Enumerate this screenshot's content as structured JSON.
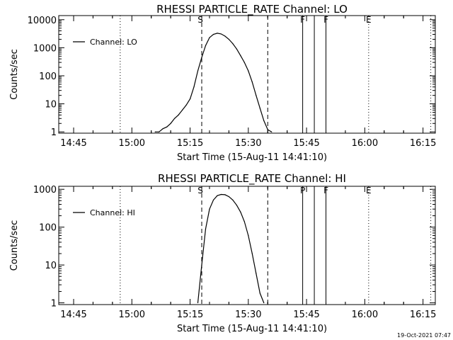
{
  "footer_timestamp": "19-Oct-2021 07:47",
  "chart_data": [
    {
      "type": "line",
      "title": "RHESSI PARTICLE_RATE Channel: LO",
      "xlabel": "Start Time (15-Aug-11 14:41:10)",
      "ylabel": "Counts/sec",
      "yscale": "log",
      "ylim": [
        0.9,
        14000
      ],
      "xlim_minutes_after_14_41": [
        0,
        97
      ],
      "x_ticks": [
        "14:45",
        "15:00",
        "15:15",
        "15:30",
        "15:45",
        "16:00",
        "16:15"
      ],
      "y_ticks": [
        "1",
        "10",
        "100",
        "1000",
        "10000"
      ],
      "legend": {
        "label": "Channel: LO",
        "position": "top-left"
      },
      "series": [
        {
          "name": "Channel: LO",
          "x": [
            "15:06",
            "15:07",
            "15:08",
            "15:09",
            "15:10",
            "15:11",
            "15:12",
            "15:13",
            "15:14",
            "15:15",
            "15:16",
            "15:17",
            "15:18",
            "15:19",
            "15:20",
            "15:21",
            "15:22",
            "15:23",
            "15:24",
            "15:25",
            "15:26",
            "15:27",
            "15:28",
            "15:29",
            "15:30",
            "15:31",
            "15:32",
            "15:33",
            "15:34",
            "15:35",
            "15:36"
          ],
          "y": [
            1,
            1,
            1.3,
            1.5,
            2,
            3,
            4,
            6,
            9,
            15,
            40,
            150,
            450,
            1200,
            2300,
            3000,
            3300,
            3100,
            2600,
            2000,
            1400,
            900,
            520,
            300,
            150,
            60,
            20,
            7,
            2.5,
            1.2,
            1
          ]
        }
      ],
      "markers": [
        {
          "label": "",
          "time": "14:57",
          "style": "dotted"
        },
        {
          "label": "S",
          "time": "15:18",
          "style": "dashed"
        },
        {
          "label": "",
          "time": "15:35",
          "style": "dashed"
        },
        {
          "label": "F",
          "time": "15:44",
          "style": "solid"
        },
        {
          "label": "",
          "time": "15:47",
          "style": "solid"
        },
        {
          "label": "F",
          "time": "15:50",
          "style": "solid"
        },
        {
          "label": "E",
          "time": "16:01",
          "style": "dotted"
        },
        {
          "label": "",
          "time": "16:17",
          "style": "dotted"
        }
      ]
    },
    {
      "type": "line",
      "title": "RHESSI PARTICLE_RATE Channel: HI",
      "xlabel": "Start Time (15-Aug-11 14:41:10)",
      "ylabel": "Counts/sec",
      "yscale": "log",
      "ylim": [
        0.9,
        1200
      ],
      "xlim_minutes_after_14_41": [
        0,
        97
      ],
      "x_ticks": [
        "14:45",
        "15:00",
        "15:15",
        "15:30",
        "15:45",
        "16:00",
        "16:15"
      ],
      "y_ticks": [
        "1",
        "10",
        "100",
        "1000"
      ],
      "legend": {
        "label": "Channel: HI",
        "position": "top-left"
      },
      "series": [
        {
          "name": "Channel: HI",
          "x": [
            "15:17",
            "15:18",
            "15:19",
            "15:20",
            "15:21",
            "15:22",
            "15:23",
            "15:24",
            "15:25",
            "15:26",
            "15:27",
            "15:28",
            "15:29",
            "15:30",
            "15:31",
            "15:32",
            "15:33",
            "15:34"
          ],
          "y": [
            1,
            10,
            90,
            300,
            520,
            680,
            730,
            720,
            640,
            520,
            380,
            250,
            140,
            60,
            20,
            6,
            1.8,
            1
          ]
        }
      ],
      "markers": [
        {
          "label": "",
          "time": "14:57",
          "style": "dotted"
        },
        {
          "label": "S",
          "time": "15:18",
          "style": "dashed"
        },
        {
          "label": "",
          "time": "15:35",
          "style": "dashed"
        },
        {
          "label": "P",
          "time": "15:44",
          "style": "solid"
        },
        {
          "label": "",
          "time": "15:47",
          "style": "solid"
        },
        {
          "label": "F",
          "time": "15:50",
          "style": "solid"
        },
        {
          "label": "E",
          "time": "16:01",
          "style": "dotted"
        },
        {
          "label": "",
          "time": "16:17",
          "style": "dotted"
        }
      ]
    }
  ]
}
